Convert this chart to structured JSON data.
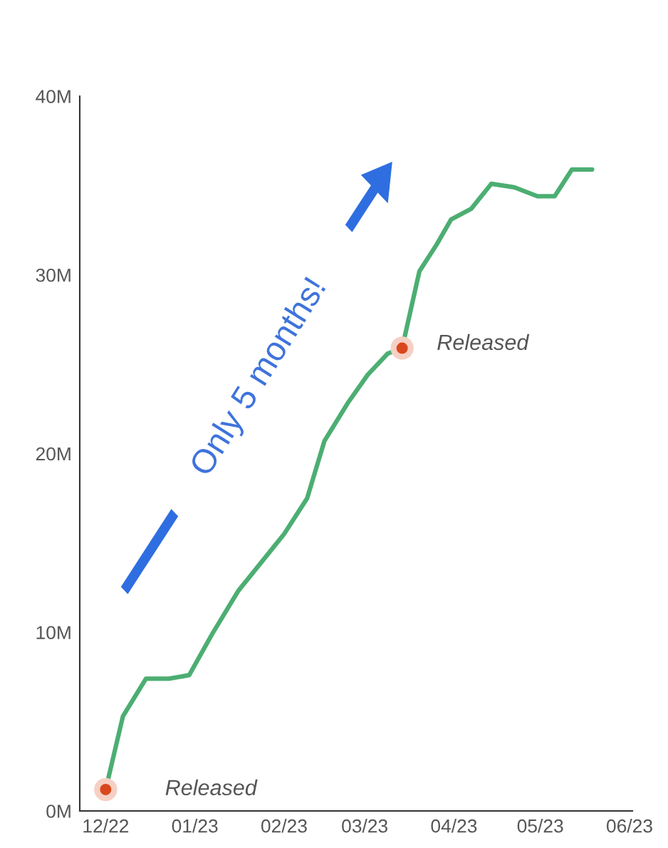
{
  "chart_data": {
    "type": "line",
    "x": [
      "2022-12-01",
      "2022-12-07",
      "2022-12-15",
      "2022-12-23",
      "2022-12-30",
      "2023-01-07",
      "2023-01-16",
      "2023-01-24",
      "2023-02-01",
      "2023-02-09",
      "2023-02-15",
      "2023-02-23",
      "2023-03-02",
      "2023-03-09",
      "2023-03-14",
      "2023-03-20",
      "2023-03-26",
      "2023-03-31",
      "2023-04-07",
      "2023-04-14",
      "2023-04-22",
      "2023-04-30",
      "2023-05-06",
      "2023-05-12",
      "2023-05-19"
    ],
    "series": [
      {
        "color": "#4cae72",
        "values": [
          1.2,
          5.3,
          7.4,
          7.4,
          7.6,
          9.9,
          12.3,
          13.9,
          15.5,
          17.5,
          20.7,
          22.8,
          24.4,
          25.6,
          25.9,
          30.2,
          31.7,
          33.1,
          33.7,
          35.1,
          34.9,
          34.4,
          34.4,
          35.9,
          35.9
        ]
      }
    ],
    "xlim": [
      "2022-11-22",
      "2023-06-02"
    ],
    "xticks": [
      {
        "value": "2022-12-01",
        "label": "12/22"
      },
      {
        "value": "2023-01-01",
        "label": "01/23"
      },
      {
        "value": "2023-02-01",
        "label": "02/23"
      },
      {
        "value": "2023-03-01",
        "label": "03/23"
      },
      {
        "value": "2023-04-01",
        "label": "04/23"
      },
      {
        "value": "2023-05-01",
        "label": "05/23"
      },
      {
        "value": "2023-06-01",
        "label": "06/23"
      }
    ],
    "ylim": [
      0,
      40
    ],
    "yticks": [
      {
        "value": 0,
        "label": "0M"
      },
      {
        "value": 10,
        "label": "10M"
      },
      {
        "value": 20,
        "label": "20M"
      },
      {
        "value": 30,
        "label": "30M"
      },
      {
        "value": 40,
        "label": "40M"
      }
    ],
    "grid": false,
    "legend": false,
    "marker": "none",
    "line_style": "solid",
    "annotations": [
      {
        "text": "Released",
        "x": "2022-12-01",
        "y": 1.2
      },
      {
        "text": "Released",
        "x": "2023-03-14",
        "y": 25.9
      },
      "Only 5 months!"
    ]
  }
}
